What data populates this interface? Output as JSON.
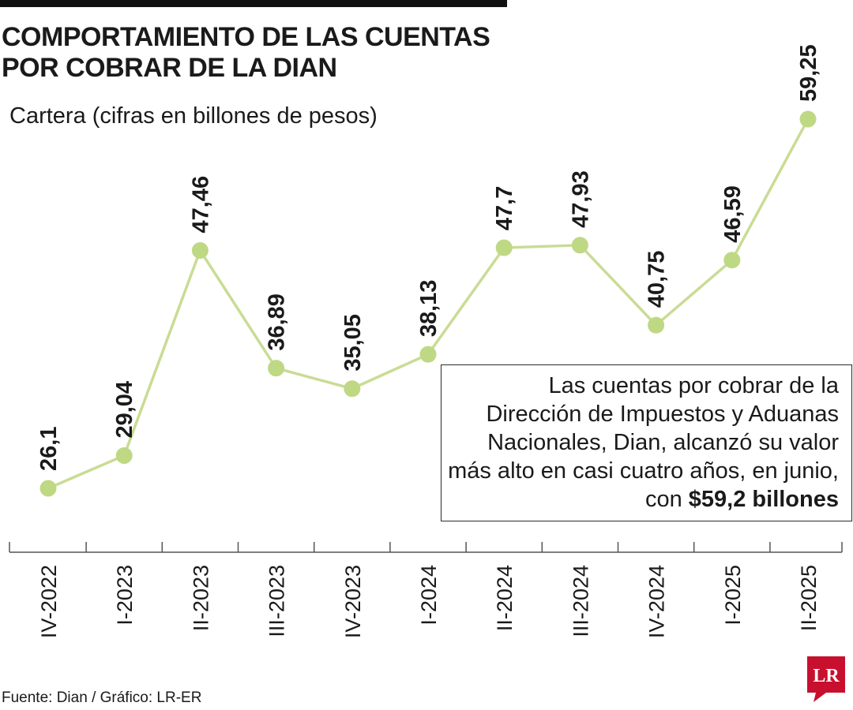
{
  "header": {
    "title_line1": "COMPORTAMIENTO DE LAS CUENTAS",
    "title_line2": "POR COBRAR DE LA DIAN",
    "subtitle": "Cartera (cifras en billones de pesos)"
  },
  "note": {
    "text": "Las cuentas por cobrar de la Dirección de Impuestos y Aduanas Nacionales, Dian, alcanzó su valor más alto en casi cuatro años, en junio, con",
    "highlight": "$59,2 billones"
  },
  "footer": {
    "source": "Fuente: Dian / Gráfico: LR-ER",
    "logo_text": "LR"
  },
  "colors": {
    "line": "#c9dc94",
    "marker": "#bfd884",
    "axis": "#555555",
    "text": "#1a1a1a",
    "logo": "#c8102e"
  },
  "chart_data": {
    "type": "line",
    "categories": [
      "IV-2022",
      "I-2023",
      "II-2023",
      "III-2023",
      "IV-2023",
      "I-2024",
      "II-2024",
      "III-2024",
      "IV-2024",
      "I-2025",
      "II-2025"
    ],
    "values": [
      26.1,
      29.04,
      47.46,
      36.89,
      35.05,
      38.13,
      47.7,
      47.93,
      40.75,
      46.59,
      59.25
    ],
    "labels": [
      "26,1",
      "29,04",
      "47,46",
      "36,89",
      "35,05",
      "38,13",
      "47,7",
      "47,93",
      "40,75",
      "46,59",
      "59,25"
    ],
    "title": "COMPORTAMIENTO DE LAS CUENTAS POR COBRAR DE LA DIAN",
    "ylabel": "Cartera (cifras en billones de pesos)",
    "xlabel": "",
    "ylim": [
      26.1,
      59.25
    ],
    "grid": false,
    "legend": "none"
  }
}
